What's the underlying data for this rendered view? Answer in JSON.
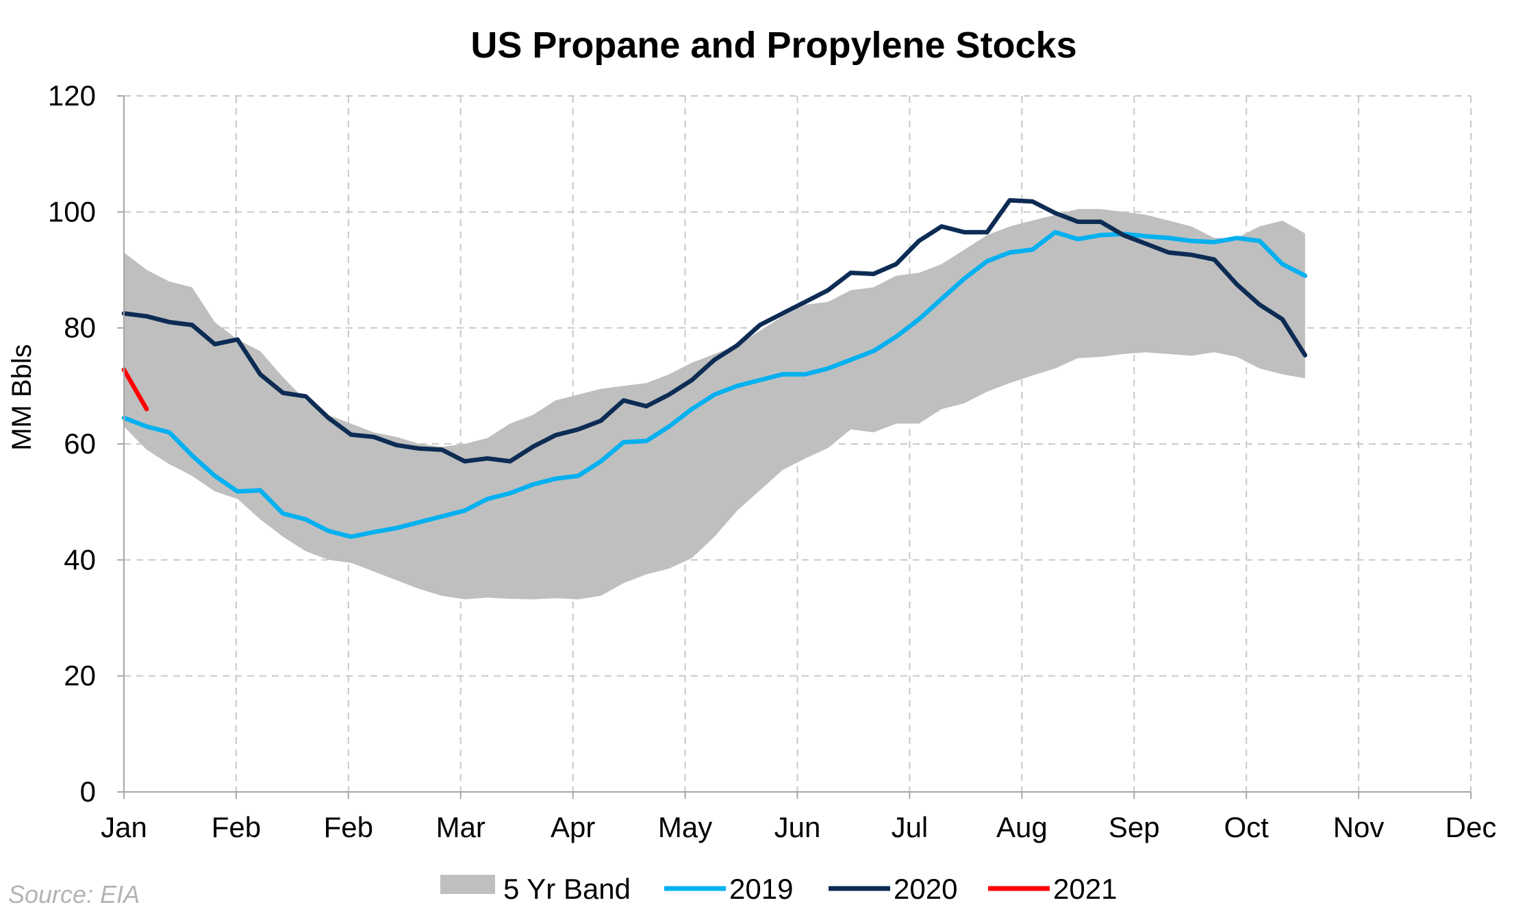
{
  "chart_data": {
    "type": "line",
    "title": "US Propane and Propylene Stocks",
    "ylabel": "MM Bbls",
    "xlabel": "",
    "ylim": [
      0,
      120
    ],
    "yticks": [
      0,
      20,
      40,
      60,
      80,
      100,
      120
    ],
    "x_tick_labels": [
      "Jan",
      "Feb",
      "Feb",
      "Mar",
      "Apr",
      "May",
      "Jun",
      "Jul",
      "Aug",
      "Sep",
      "Oct",
      "Nov",
      "Dec"
    ],
    "grid": true,
    "legend_position": "bottom",
    "source": "Source:  EIA",
    "x_unit": "week of year",
    "band": {
      "name": "5 Yr Band",
      "color": "#bfbfbf",
      "x": [
        1,
        2,
        3,
        4,
        5,
        6,
        7,
        8,
        9,
        10,
        11,
        12,
        13,
        14,
        15,
        16,
        17,
        18,
        19,
        20,
        21,
        22,
        23,
        24,
        25,
        26,
        27,
        28,
        29,
        30,
        31,
        32,
        33,
        34,
        35,
        36,
        37,
        38,
        39,
        40,
        41,
        42,
        43,
        44,
        45,
        46,
        47,
        48,
        49,
        50,
        51,
        52,
        53
      ],
      "lower": [
        63,
        59,
        56.5,
        54.5,
        51.8,
        50.5,
        47,
        44,
        41.5,
        40,
        39.5,
        38,
        36.5,
        35,
        33.8,
        33.2,
        33.5,
        33.3,
        33.2,
        33.4,
        33.2,
        33.8,
        36,
        37.5,
        38.5,
        40.3,
        44,
        48.5,
        52,
        55.5,
        57.5,
        59.3,
        62.5,
        62,
        63.5,
        63.5,
        66,
        67,
        69,
        70.5,
        71.8,
        73,
        74.8,
        75,
        75.5,
        75.8,
        75.5,
        75.2,
        75.8,
        75,
        73,
        72,
        71.3
      ],
      "upper": [
        93,
        90,
        88,
        87,
        81,
        78,
        76,
        71.5,
        67.5,
        65,
        63.5,
        62,
        61.2,
        60,
        59.5,
        60,
        61,
        63.5,
        65,
        67.5,
        68.5,
        69.5,
        70,
        70.5,
        72,
        74,
        75.5,
        77,
        79.5,
        82,
        84,
        84.5,
        86.5,
        87,
        89,
        89.5,
        91,
        93.5,
        96,
        97.5,
        98.5,
        99.5,
        100.5,
        100.5,
        100,
        99.5,
        98.5,
        97.5,
        95.5,
        95.5,
        97.5,
        98.5,
        96.3
      ]
    },
    "series": [
      {
        "name": "2019",
        "color": "#00b0f0",
        "x": [
          1,
          2,
          3,
          4,
          5,
          6,
          7,
          8,
          9,
          10,
          11,
          12,
          13,
          14,
          15,
          16,
          17,
          18,
          19,
          20,
          21,
          22,
          23,
          24,
          25,
          26,
          27,
          28,
          29,
          30,
          31,
          32,
          33,
          34,
          35,
          36,
          37,
          38,
          39,
          40,
          41,
          42,
          43,
          44,
          45,
          46,
          47,
          48,
          49,
          50,
          51,
          52,
          53
        ],
        "values": [
          64.5,
          63,
          62,
          58,
          54.5,
          51.8,
          52,
          48,
          47,
          45,
          44,
          44.8,
          45.5,
          46.5,
          47.5,
          48.5,
          50.5,
          51.5,
          53,
          54,
          54.5,
          57,
          60.3,
          60.5,
          63,
          66,
          68.5,
          70,
          71,
          72,
          72,
          73,
          74.5,
          76,
          78.5,
          81.5,
          85,
          88.5,
          91.5,
          93,
          93.5,
          96.5,
          95.3,
          96,
          96.2,
          95.8,
          95.5,
          95,
          94.8,
          95.5,
          95,
          91,
          89
        ]
      },
      {
        "name": "2020",
        "color": "#0d2c54",
        "x": [
          1,
          2,
          3,
          4,
          5,
          6,
          7,
          8,
          9,
          10,
          11,
          12,
          13,
          14,
          15,
          16,
          17,
          18,
          19,
          20,
          21,
          22,
          23,
          24,
          25,
          26,
          27,
          28,
          29,
          30,
          31,
          32,
          33,
          34,
          35,
          36,
          37,
          38,
          39,
          40,
          41,
          42,
          43,
          44,
          45,
          46,
          47,
          48,
          49,
          50,
          51,
          52,
          53
        ],
        "values": [
          82.5,
          82,
          81,
          80.5,
          77.2,
          78,
          72,
          68.8,
          68.2,
          64.5,
          61.6,
          61.2,
          59.8,
          59.2,
          59,
          57,
          57.5,
          57,
          59.5,
          61.5,
          62.5,
          64,
          67.5,
          66.5,
          68.5,
          71,
          74.5,
          77,
          80.5,
          82.5,
          84.5,
          86.5,
          89.5,
          89.3,
          91,
          95,
          97.5,
          96.5,
          96.5,
          102,
          101.8,
          99.8,
          98.3,
          98.3,
          96,
          94.5,
          93,
          92.6,
          91.8,
          87.5,
          84,
          81.5,
          75.3
        ]
      },
      {
        "name": "2021",
        "color": "#ff0000",
        "x": [
          1,
          2
        ],
        "values": [
          72.8,
          66
        ]
      }
    ],
    "x_domain": [
      1,
      60.3
    ]
  }
}
